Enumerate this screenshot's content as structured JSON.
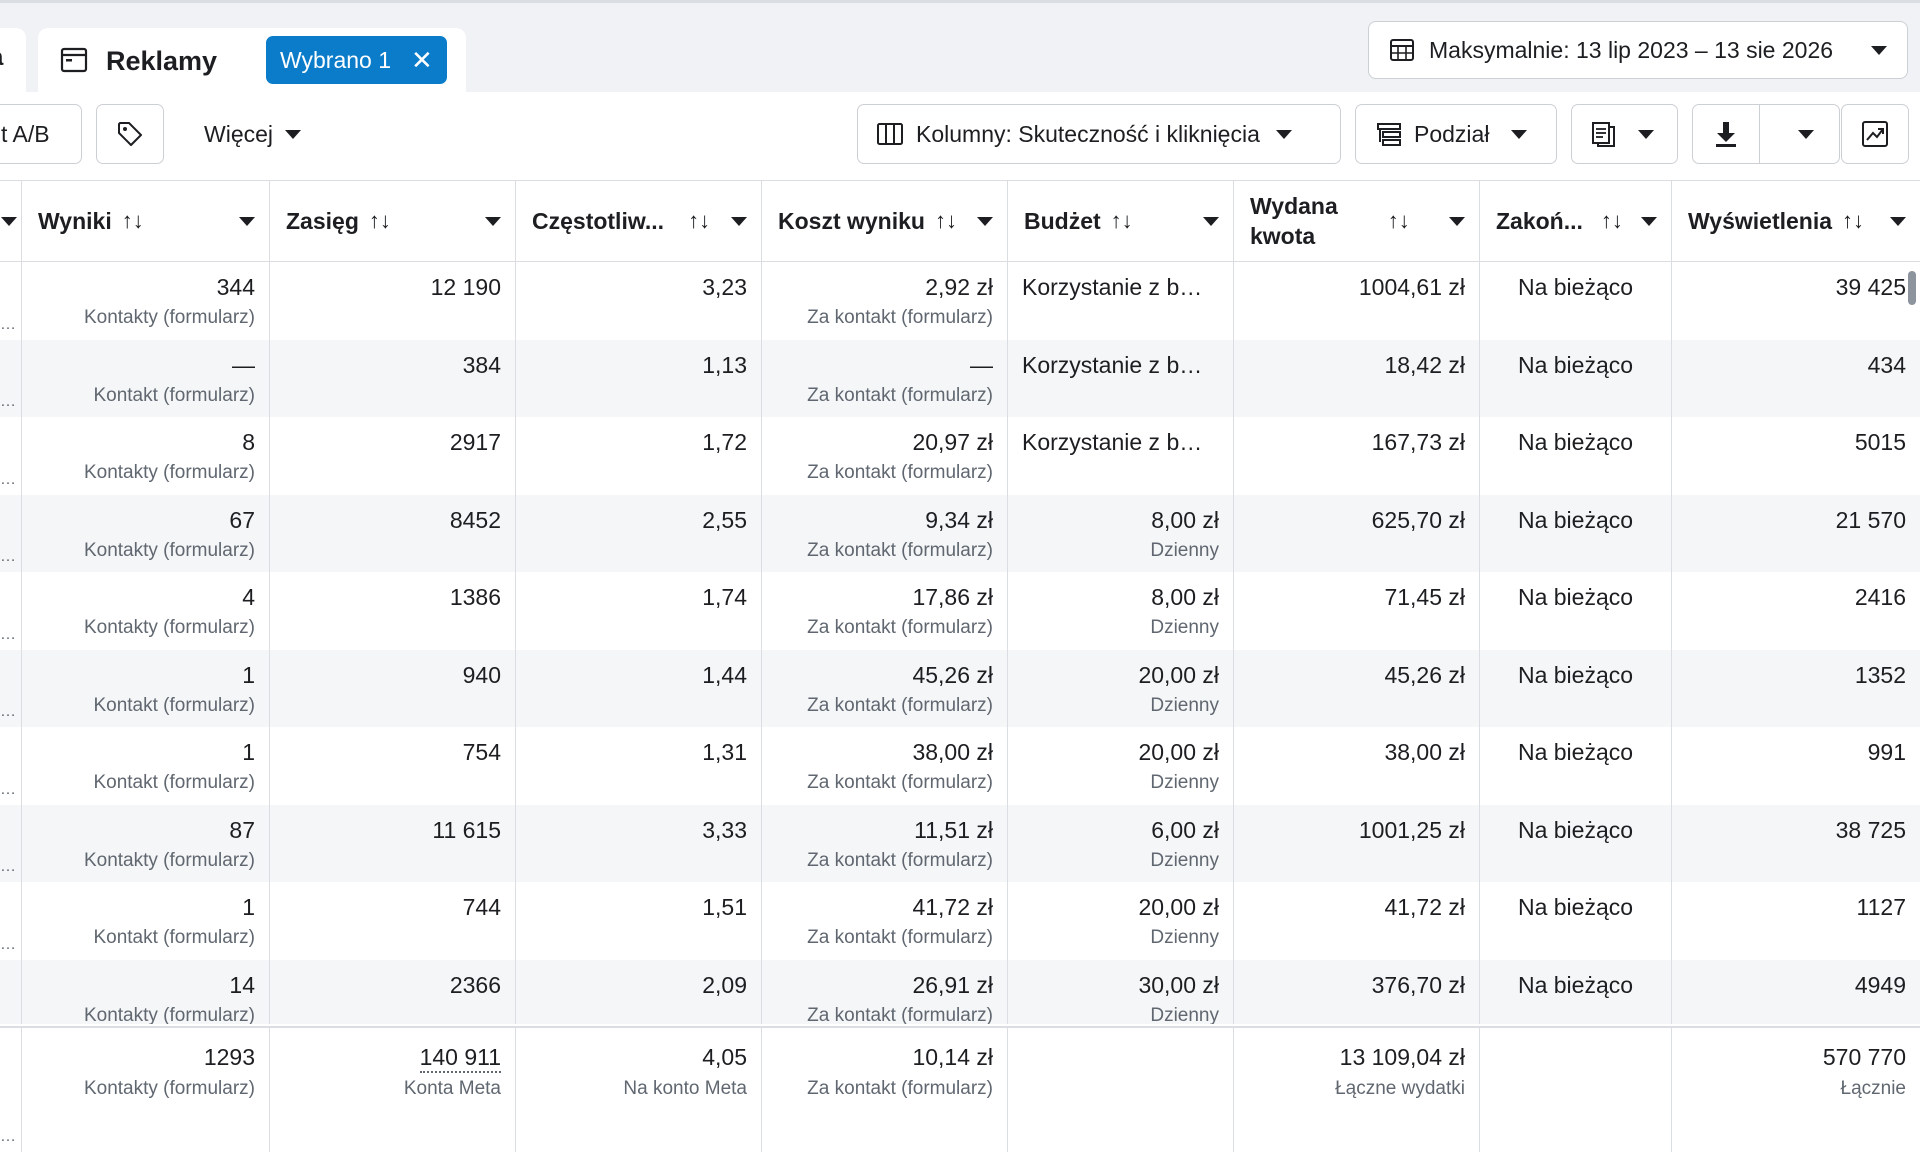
{
  "tabs": {
    "left_fragment": "a",
    "active_title": "Reklamy",
    "chip_label": "Wybrano 1",
    "chip_close": "✕"
  },
  "date_range": "Maksymalnie: 13 lip 2023 – 13 sie 2026",
  "toolbar": {
    "ab_test": "t A/B",
    "more": "Więcej",
    "columns": "Kolumny: Skuteczność i kliknięcia",
    "breakdown": "Podział"
  },
  "headers": {
    "results": "Wyniki",
    "reach": "Zasięg",
    "frequency": "Częstotliw...",
    "cost_per_result": "Koszt wyniku",
    "budget": "Budżet",
    "spent_line1": "Wydana",
    "spent_line2": "kwota",
    "ends": "Zakoń...",
    "impressions": "Wyświetlenia",
    "sort_icon": "↑↓"
  },
  "rows": [
    {
      "results": "344",
      "results_sub": "Kontakty (formularz)",
      "reach": "12 190",
      "frequency": "3,23",
      "cost": "2,92 zł",
      "cost_sub": "Za kontakt (formularz)",
      "budget": "Korzystanie z b…",
      "budget_sub": "",
      "spent": "1004,61 zł",
      "ends": "Na bieżąco",
      "impressions": "39 425"
    },
    {
      "results": "—",
      "results_sub": "Kontakt (formularz)",
      "reach": "384",
      "frequency": "1,13",
      "cost": "—",
      "cost_sub": "Za kontakt (formularz)",
      "budget": "Korzystanie z b…",
      "budget_sub": "",
      "spent": "18,42 zł",
      "ends": "Na bieżąco",
      "impressions": "434"
    },
    {
      "results": "8",
      "results_sub": "Kontakty (formularz)",
      "reach": "2917",
      "frequency": "1,72",
      "cost": "20,97 zł",
      "cost_sub": "Za kontakt (formularz)",
      "budget": "Korzystanie z b…",
      "budget_sub": "",
      "spent": "167,73 zł",
      "ends": "Na bieżąco",
      "impressions": "5015"
    },
    {
      "results": "67",
      "results_sub": "Kontakty (formularz)",
      "reach": "8452",
      "frequency": "2,55",
      "cost": "9,34 zł",
      "cost_sub": "Za kontakt (formularz)",
      "budget": "8,00 zł",
      "budget_sub": "Dzienny",
      "spent": "625,70 zł",
      "ends": "Na bieżąco",
      "impressions": "21 570"
    },
    {
      "results": "4",
      "results_sub": "Kontakty (formularz)",
      "reach": "1386",
      "frequency": "1,74",
      "cost": "17,86 zł",
      "cost_sub": "Za kontakt (formularz)",
      "budget": "8,00 zł",
      "budget_sub": "Dzienny",
      "spent": "71,45 zł",
      "ends": "Na bieżąco",
      "impressions": "2416"
    },
    {
      "results": "1",
      "results_sub": "Kontakt (formularz)",
      "reach": "940",
      "frequency": "1,44",
      "cost": "45,26 zł",
      "cost_sub": "Za kontakt (formularz)",
      "budget": "20,00 zł",
      "budget_sub": "Dzienny",
      "spent": "45,26 zł",
      "ends": "Na bieżąco",
      "impressions": "1352"
    },
    {
      "results": "1",
      "results_sub": "Kontakt (formularz)",
      "reach": "754",
      "frequency": "1,31",
      "cost": "38,00 zł",
      "cost_sub": "Za kontakt (formularz)",
      "budget": "20,00 zł",
      "budget_sub": "Dzienny",
      "spent": "38,00 zł",
      "ends": "Na bieżąco",
      "impressions": "991"
    },
    {
      "results": "87",
      "results_sub": "Kontakty (formularz)",
      "reach": "11 615",
      "frequency": "3,33",
      "cost": "11,51 zł",
      "cost_sub": "Za kontakt (formularz)",
      "budget": "6,00 zł",
      "budget_sub": "Dzienny",
      "spent": "1001,25 zł",
      "ends": "Na bieżąco",
      "impressions": "38 725"
    },
    {
      "results": "1",
      "results_sub": "Kontakt (formularz)",
      "reach": "744",
      "frequency": "1,51",
      "cost": "41,72 zł",
      "cost_sub": "Za kontakt (formularz)",
      "budget": "20,00 zł",
      "budget_sub": "Dzienny",
      "spent": "41,72 zł",
      "ends": "Na bieżąco",
      "impressions": "1127"
    },
    {
      "results": "14",
      "results_sub": "Kontakty (formularz)",
      "reach": "2366",
      "frequency": "2,09",
      "cost": "26,91 zł",
      "cost_sub": "Za kontakt (formularz)",
      "budget": "30,00 zł",
      "budget_sub": "Dzienny",
      "spent": "376,70 zł",
      "ends": "Na bieżąco",
      "impressions": "4949"
    }
  ],
  "totals": {
    "results": "1293",
    "results_sub": "Kontakty (formularz)",
    "reach": "140 911",
    "reach_sub": "Konta Meta",
    "frequency": "4,05",
    "frequency_sub": "Na konto Meta",
    "cost": "10,14 zł",
    "cost_sub": "Za kontakt (formularz)",
    "spent": "13 109,04 zł",
    "spent_sub": "Łączne wydatki",
    "impressions": "570 770",
    "impressions_sub": "Łącznie"
  },
  "colors": {
    "accent": "#0a7cc9",
    "border": "#dadde1",
    "muted": "#606770",
    "alt_row": "#f5f6f7"
  }
}
